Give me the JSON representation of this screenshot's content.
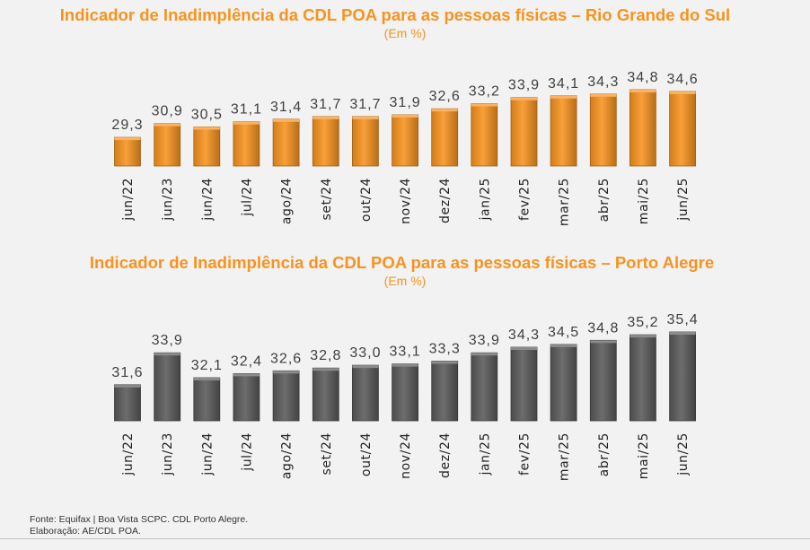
{
  "charts": [
    {
      "title": "Indicador de Inadimplência da CDL POA para as pessoas físicas – Rio Grande do Sul",
      "subtitle": "(Em %)"
    },
    {
      "title": "Indicador de Inadimplência da CDL POA para as pessoas físicas – Porto Alegre",
      "subtitle": "(Em %)"
    }
  ],
  "chart_data": [
    {
      "type": "bar",
      "title": "Indicador de Inadimplência da CDL POA para as pessoas físicas – Rio Grande do Sul",
      "subtitle": "(Em %)",
      "categories": [
        "jun/22",
        "jun/23",
        "jun/24",
        "jul/24",
        "ago/24",
        "set/24",
        "out/24",
        "nov/24",
        "dez/24",
        "jan/25",
        "fev/25",
        "mar/25",
        "abr/25",
        "mai/25",
        "jun/25"
      ],
      "values": [
        29.3,
        30.9,
        30.5,
        31.1,
        31.4,
        31.7,
        31.7,
        31.9,
        32.6,
        33.2,
        33.9,
        34.1,
        34.3,
        34.8,
        34.6
      ],
      "value_labels": [
        "29,3",
        "30,9",
        "30,5",
        "31,1",
        "31,4",
        "31,7",
        "31,7",
        "31,9",
        "32,6",
        "33,2",
        "33,9",
        "34,1",
        "34,3",
        "34,8",
        "34,6"
      ],
      "color": "#f7931e",
      "ylim": [
        26,
        36
      ],
      "grid": false,
      "legend": "none"
    },
    {
      "type": "bar",
      "title": "Indicador de Inadimplência da CDL POA para as pessoas físicas – Porto Alegre",
      "subtitle": "(Em %)",
      "categories": [
        "jun/22",
        "jun/23",
        "jun/24",
        "jul/24",
        "ago/24",
        "set/24",
        "out/24",
        "nov/24",
        "dez/24",
        "jan/25",
        "fev/25",
        "mar/25",
        "abr/25",
        "mai/25",
        "jun/25"
      ],
      "values": [
        31.6,
        33.9,
        32.1,
        32.4,
        32.6,
        32.8,
        33.0,
        33.1,
        33.3,
        33.9,
        34.3,
        34.5,
        34.8,
        35.2,
        35.4
      ],
      "value_labels": [
        "31,6",
        "33,9",
        "32,1",
        "32,4",
        "32,6",
        "32,8",
        "33,0",
        "33,1",
        "33,3",
        "33,9",
        "34,3",
        "34,5",
        "34,8",
        "35,2",
        "35,4"
      ],
      "color": "#595959",
      "ylim": [
        29,
        36.2
      ],
      "grid": false,
      "legend": "none"
    }
  ],
  "footer": {
    "source": "Fonte: Equifax | Boa Vista SCPC. CDL Porto Alegre.",
    "credit": "Elaboração: AE/CDL POA."
  }
}
